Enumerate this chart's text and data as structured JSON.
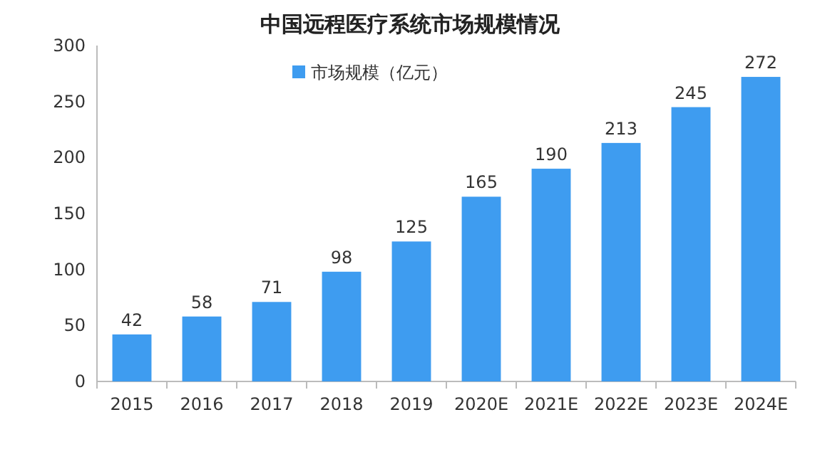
{
  "chart_data": {
    "type": "bar",
    "title": "中国远程医疗系统市场规模情况",
    "categories": [
      "2015",
      "2016",
      "2017",
      "2018",
      "2019",
      "2020E",
      "2021E",
      "2022E",
      "2023E",
      "2024E"
    ],
    "series": [
      {
        "name": "市场规模（亿元）",
        "color": "#3e9cf0",
        "values": [
          42,
          58,
          71,
          98,
          125,
          165,
          190,
          213,
          245,
          272
        ]
      }
    ],
    "ylim": [
      0,
      300
    ],
    "yticks": [
      0,
      50,
      100,
      150,
      200,
      250,
      300
    ],
    "data_labels": true,
    "grid": false,
    "legend": "top"
  }
}
